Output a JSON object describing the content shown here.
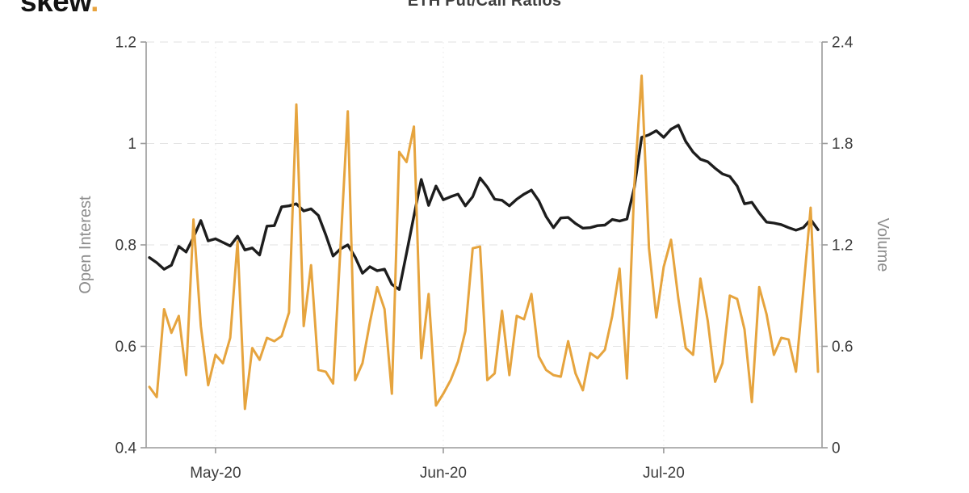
{
  "logo": {
    "text": "skew",
    "dot": ".",
    "dot_color": "#e8a33d",
    "text_color": "#131313"
  },
  "chart_data": {
    "type": "line",
    "title": "ETH Put/Call Ratios",
    "legend": "none",
    "grid": {
      "horizontal_dashed": true,
      "vertical_at_month_ticks": true
    },
    "colors": {
      "open_interest_line": "#1d1d1d",
      "volume_line": "#e6a43e",
      "axis_line": "#9a9a9a",
      "tick_text": "#3b3b3b",
      "axis_title_text": "#8c8c8c",
      "gridline": "#e2e2e2",
      "vertical_gridline": "#ececec"
    },
    "y_left": {
      "label": "Open Interest",
      "range": [
        0.4,
        1.2
      ],
      "ticks": [
        {
          "v": 1.2,
          "label": "1.2"
        },
        {
          "v": 1.0,
          "label": "1"
        },
        {
          "v": 0.8,
          "label": "0.8"
        },
        {
          "v": 0.6,
          "label": "0.6"
        },
        {
          "v": 0.4,
          "label": "0.4"
        }
      ]
    },
    "y_right": {
      "label": "Volume",
      "range": [
        0,
        2.4
      ],
      "ticks": [
        {
          "v": 2.4,
          "label": "2.4"
        },
        {
          "v": 1.8,
          "label": "1.8"
        },
        {
          "v": 1.2,
          "label": "1.2"
        },
        {
          "v": 0.6,
          "label": "0.6"
        },
        {
          "v": 0.0,
          "label": "0"
        }
      ]
    },
    "x_ticks": [
      {
        "index": 9,
        "label": "May-20"
      },
      {
        "index": 40,
        "label": "Jun-20"
      },
      {
        "index": 70,
        "label": "Jul-20"
      }
    ],
    "dates": [
      "2020-04-22",
      "2020-04-23",
      "2020-04-24",
      "2020-04-25",
      "2020-04-26",
      "2020-04-27",
      "2020-04-28",
      "2020-04-29",
      "2020-04-30",
      "2020-05-01",
      "2020-05-02",
      "2020-05-03",
      "2020-05-04",
      "2020-05-05",
      "2020-05-06",
      "2020-05-07",
      "2020-05-08",
      "2020-05-09",
      "2020-05-10",
      "2020-05-11",
      "2020-05-12",
      "2020-05-13",
      "2020-05-14",
      "2020-05-15",
      "2020-05-16",
      "2020-05-17",
      "2020-05-18",
      "2020-05-19",
      "2020-05-20",
      "2020-05-21",
      "2020-05-22",
      "2020-05-23",
      "2020-05-24",
      "2020-05-25",
      "2020-05-26",
      "2020-05-27",
      "2020-05-28",
      "2020-05-29",
      "2020-05-30",
      "2020-05-31",
      "2020-06-01",
      "2020-06-02",
      "2020-06-03",
      "2020-06-04",
      "2020-06-05",
      "2020-06-06",
      "2020-06-07",
      "2020-06-08",
      "2020-06-09",
      "2020-06-10",
      "2020-06-11",
      "2020-06-12",
      "2020-06-13",
      "2020-06-14",
      "2020-06-15",
      "2020-06-16",
      "2020-06-17",
      "2020-06-18",
      "2020-06-19",
      "2020-06-20",
      "2020-06-21",
      "2020-06-22",
      "2020-06-23",
      "2020-06-24",
      "2020-06-25",
      "2020-06-26",
      "2020-06-27",
      "2020-06-28",
      "2020-06-29",
      "2020-06-30",
      "2020-07-01",
      "2020-07-02",
      "2020-07-03",
      "2020-07-04",
      "2020-07-05",
      "2020-07-06",
      "2020-07-07",
      "2020-07-08",
      "2020-07-09",
      "2020-07-10",
      "2020-07-11",
      "2020-07-12",
      "2020-07-13",
      "2020-07-14",
      "2020-07-15",
      "2020-07-16",
      "2020-07-17",
      "2020-07-18",
      "2020-07-19",
      "2020-07-20",
      "2020-07-21",
      "2020-07-22"
    ],
    "series": [
      {
        "name": "Open Interest",
        "axis": "left",
        "color": "#1d1d1d",
        "stroke_width": 3.4,
        "values": [
          0.775,
          0.765,
          0.752,
          0.76,
          0.797,
          0.786,
          0.815,
          0.848,
          0.808,
          0.812,
          0.805,
          0.798,
          0.817,
          0.79,
          0.794,
          0.78,
          0.837,
          0.838,
          0.875,
          0.877,
          0.881,
          0.867,
          0.871,
          0.858,
          0.82,
          0.778,
          0.792,
          0.8,
          0.776,
          0.744,
          0.757,
          0.749,
          0.752,
          0.722,
          0.712,
          0.784,
          0.857,
          0.929,
          0.878,
          0.916,
          0.889,
          0.895,
          0.9,
          0.877,
          0.895,
          0.932,
          0.914,
          0.89,
          0.888,
          0.877,
          0.89,
          0.9,
          0.908,
          0.887,
          0.856,
          0.834,
          0.853,
          0.854,
          0.842,
          0.833,
          0.834,
          0.838,
          0.839,
          0.85,
          0.847,
          0.851,
          0.913,
          1.012,
          1.017,
          1.025,
          1.012,
          1.028,
          1.036,
          1.004,
          0.983,
          0.969,
          0.964,
          0.951,
          0.94,
          0.935,
          0.916,
          0.881,
          0.884,
          0.863,
          0.845,
          0.843,
          0.84,
          0.834,
          0.829,
          0.834,
          0.85,
          0.83
        ]
      },
      {
        "name": "Volume",
        "axis": "right",
        "color": "#e6a43e",
        "stroke_width": 3,
        "values": [
          0.36,
          0.3,
          0.82,
          0.68,
          0.78,
          0.43,
          1.35,
          0.72,
          0.37,
          0.55,
          0.5,
          0.65,
          1.22,
          0.23,
          0.59,
          0.52,
          0.65,
          0.63,
          0.66,
          0.8,
          2.03,
          0.72,
          1.08,
          0.46,
          0.45,
          0.38,
          1.18,
          1.99,
          0.4,
          0.5,
          0.74,
          0.95,
          0.82,
          0.32,
          1.75,
          1.69,
          1.9,
          0.53,
          0.91,
          0.25,
          0.32,
          0.4,
          0.51,
          0.69,
          1.18,
          1.19,
          0.4,
          0.44,
          0.81,
          0.43,
          0.78,
          0.76,
          0.91,
          0.54,
          0.46,
          0.43,
          0.42,
          0.63,
          0.44,
          0.34,
          0.56,
          0.53,
          0.58,
          0.78,
          1.06,
          0.41,
          1.55,
          2.2,
          1.18,
          0.77,
          1.07,
          1.23,
          0.88,
          0.59,
          0.55,
          1.0,
          0.75,
          0.39,
          0.5,
          0.9,
          0.88,
          0.7,
          0.27,
          0.95,
          0.79,
          0.55,
          0.65,
          0.64,
          0.45,
          0.93,
          1.42,
          0.45
        ]
      }
    ]
  }
}
